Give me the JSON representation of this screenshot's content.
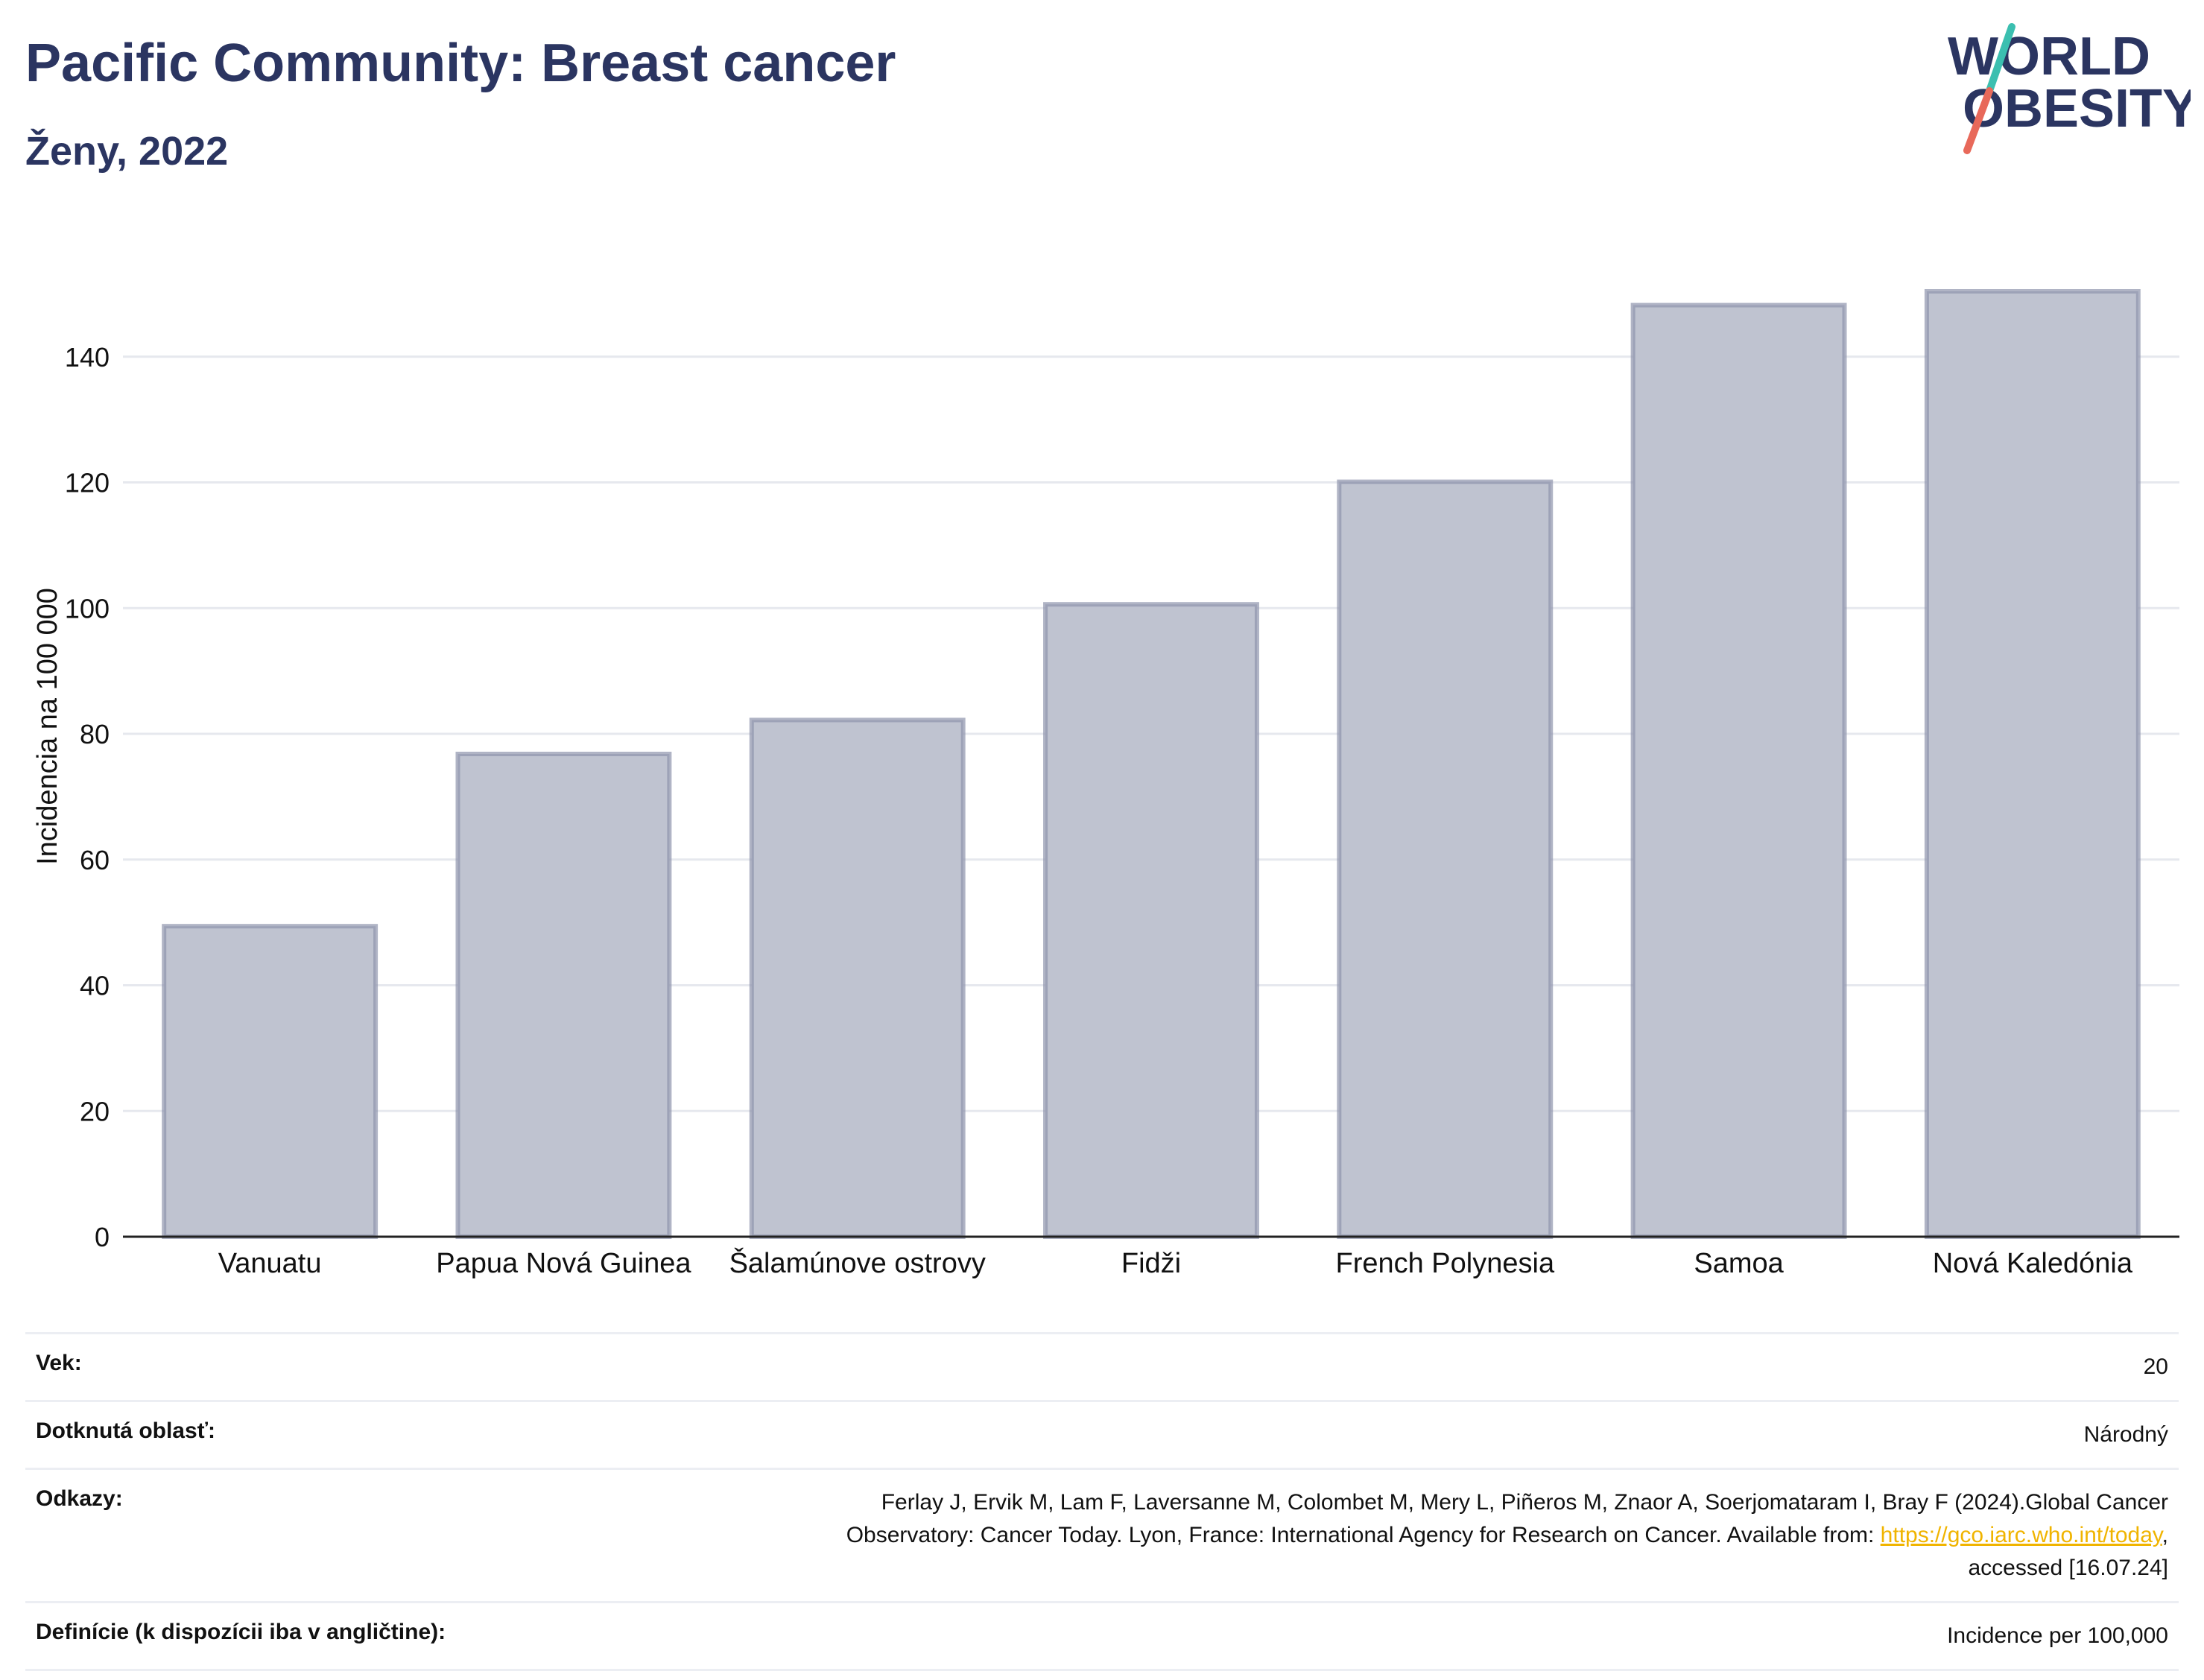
{
  "header": {
    "title": "Pacific Community: Breast cancer",
    "subtitle": "Ženy, 2022"
  },
  "logo": {
    "line1": "WORLD",
    "line2": "OBESITY",
    "text_color": "#2b3561",
    "slash_top_color": "#3bbfb0",
    "slash_bottom_color": "#e8695a"
  },
  "chart_data": {
    "type": "bar",
    "title": "Pacific Community: Breast cancer",
    "subtitle": "Ženy, 2022",
    "ylabel": "Incidencia na 100 000",
    "xlabel": "",
    "categories": [
      "Vanuatu",
      "Papua Nová Guinea",
      "Šalamúnove ostrovy",
      "Fidži",
      "French Polynesia",
      "Samoa",
      "Nová Kaledónia"
    ],
    "values": [
      49.4,
      76.8,
      82.2,
      100.6,
      120.1,
      148.2,
      150.4
    ],
    "ylim": [
      0,
      160
    ],
    "yticks": [
      0,
      20,
      40,
      60,
      80,
      100,
      120,
      140
    ],
    "grid": true,
    "bar_fill": "#bfc3d0",
    "bar_stroke": "#8e94ad"
  },
  "meta": {
    "age_label": "Vek:",
    "age_value": "20",
    "area_label": "Dotknutá oblasť:",
    "area_value": "Národný",
    "refs_label": "Odkazy:",
    "refs_text1": "Ferlay J, Ervik M, Lam F, Laversanne M, Colombet M, Mery L, Piñeros M, Znaor A, Soerjomataram I, Bray F (2024).Global Cancer",
    "refs_text2": "Observatory: Cancer Today. Lyon, France: International Agency for Research on Cancer. Available from: ",
    "refs_link": "https://gco.iarc.who.int/today",
    "refs_text3": ",",
    "refs_text4": "accessed [16.07.24]",
    "def_label": "Definície (k dispozícii iba v angličtine):",
    "def_value": "Incidence per 100,000"
  }
}
